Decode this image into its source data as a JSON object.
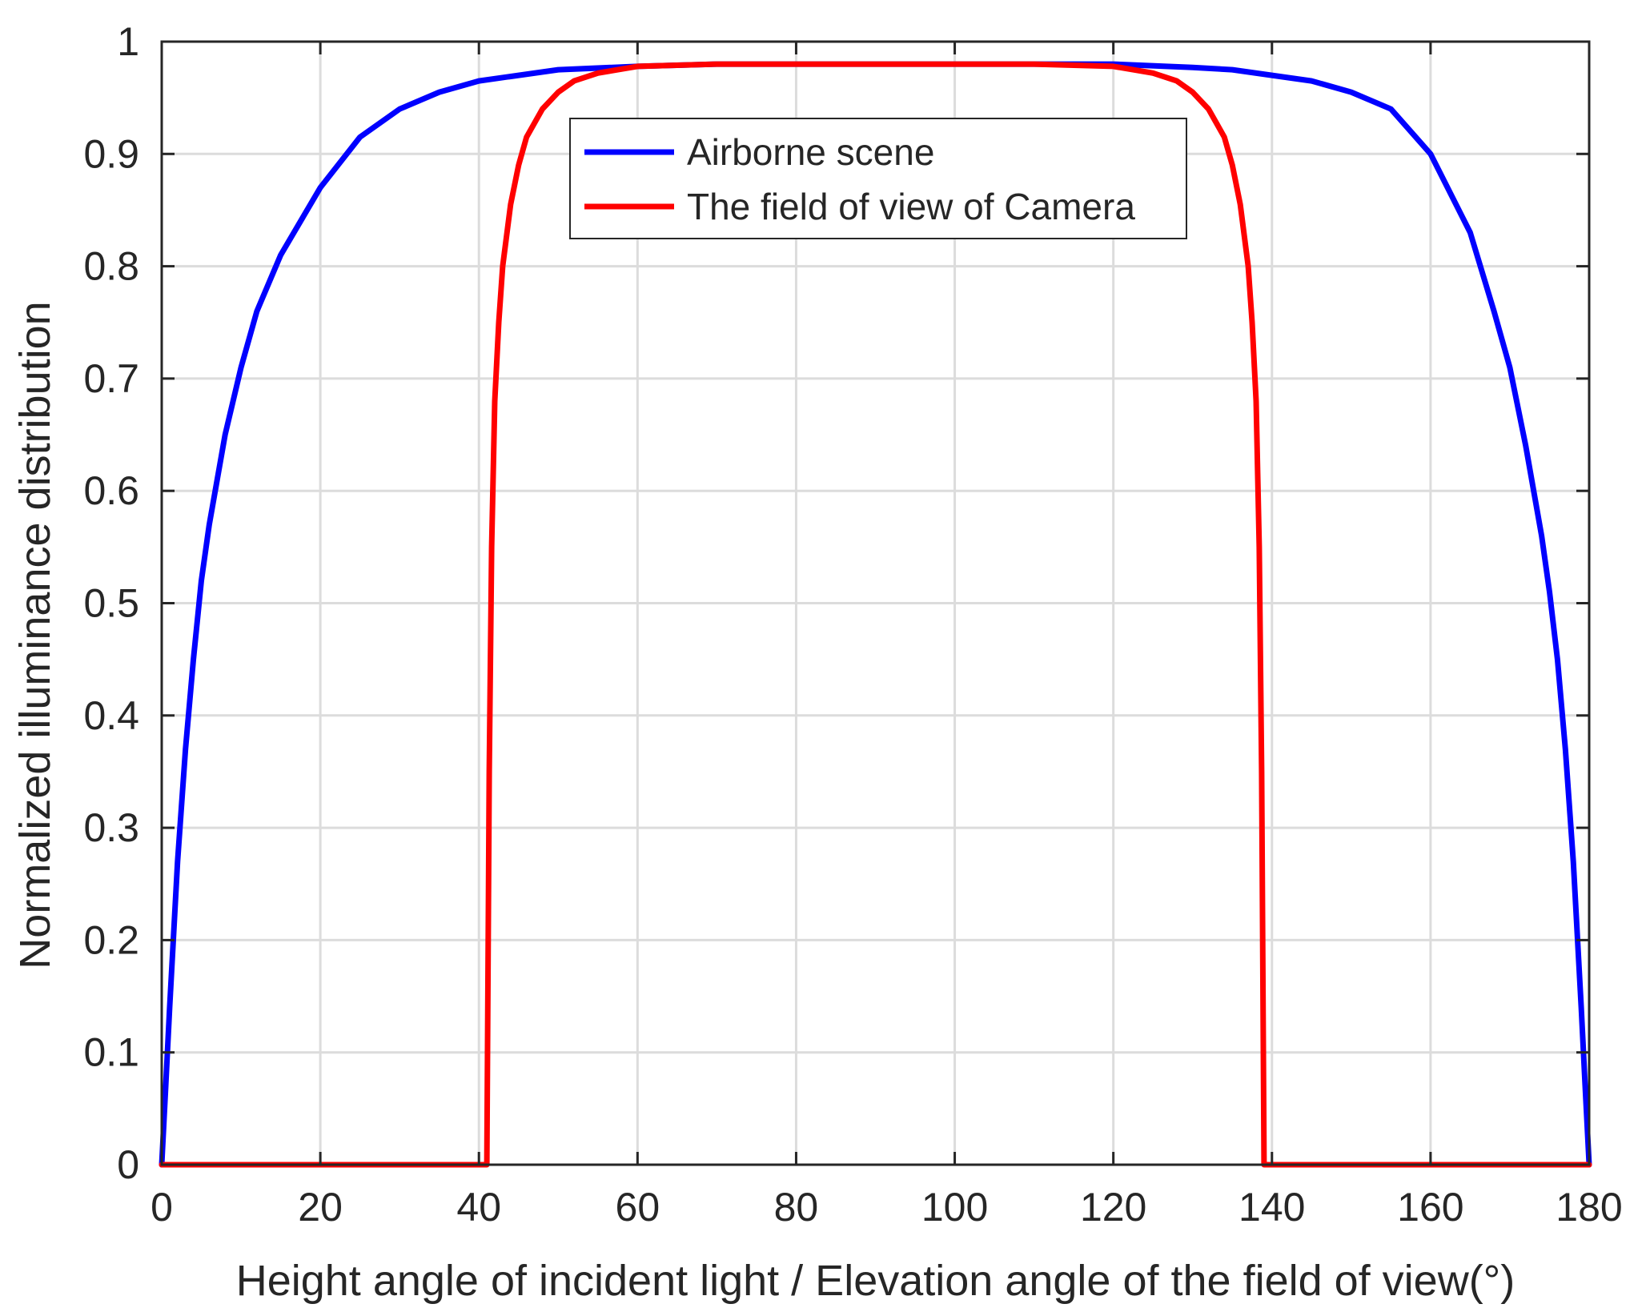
{
  "chart_data": {
    "type": "line",
    "title": "",
    "xlabel": "Height angle of incident light / Elevation angle of the field of view(°)",
    "ylabel": "Normalized illuminance distribution",
    "xlim": [
      0,
      180
    ],
    "ylim": [
      0,
      1
    ],
    "x_ticks": [
      "0",
      "20",
      "40",
      "60",
      "80",
      "100",
      "120",
      "140",
      "160",
      "180"
    ],
    "y_ticks": [
      "0",
      "0.1",
      "0.2",
      "0.3",
      "0.4",
      "0.5",
      "0.6",
      "0.7",
      "0.8",
      "0.9",
      "1"
    ],
    "grid": true,
    "legend_placement": "top-center",
    "series": [
      {
        "name": "Airborne scene",
        "color": "#0000ff",
        "x": [
          0,
          0.5,
          1,
          2,
          3,
          4,
          5,
          6,
          8,
          10,
          12,
          15,
          20,
          25,
          30,
          35,
          40,
          45,
          50,
          60,
          70,
          80,
          90,
          100,
          110,
          120,
          130,
          135,
          140,
          145,
          150,
          155,
          160,
          165,
          168,
          170,
          172,
          174,
          175,
          176,
          177,
          178,
          179,
          179.5,
          180
        ],
        "y": [
          0,
          0.07,
          0.14,
          0.27,
          0.37,
          0.45,
          0.52,
          0.57,
          0.65,
          0.71,
          0.76,
          0.81,
          0.87,
          0.915,
          0.94,
          0.955,
          0.965,
          0.97,
          0.975,
          0.978,
          0.98,
          0.98,
          0.98,
          0.98,
          0.98,
          0.98,
          0.977,
          0.975,
          0.97,
          0.965,
          0.955,
          0.94,
          0.9,
          0.83,
          0.76,
          0.71,
          0.64,
          0.56,
          0.51,
          0.45,
          0.37,
          0.27,
          0.14,
          0.07,
          0
        ]
      },
      {
        "name": "The field of view of Camera",
        "color": "#ff0000",
        "x": [
          0,
          40,
          41,
          41.3,
          41.6,
          42,
          42.5,
          43,
          44,
          45,
          46,
          48,
          50,
          52,
          55,
          60,
          70,
          80,
          90,
          100,
          110,
          120,
          125,
          128,
          130,
          132,
          134,
          135,
          136,
          137,
          137.5,
          138,
          138.4,
          138.7,
          139,
          140,
          180
        ],
        "y": [
          0,
          0,
          0,
          0.35,
          0.55,
          0.68,
          0.75,
          0.8,
          0.855,
          0.89,
          0.915,
          0.94,
          0.955,
          0.965,
          0.972,
          0.978,
          0.98,
          0.98,
          0.98,
          0.98,
          0.98,
          0.978,
          0.972,
          0.965,
          0.955,
          0.94,
          0.915,
          0.89,
          0.855,
          0.8,
          0.75,
          0.68,
          0.55,
          0.35,
          0,
          0,
          0
        ]
      }
    ]
  }
}
